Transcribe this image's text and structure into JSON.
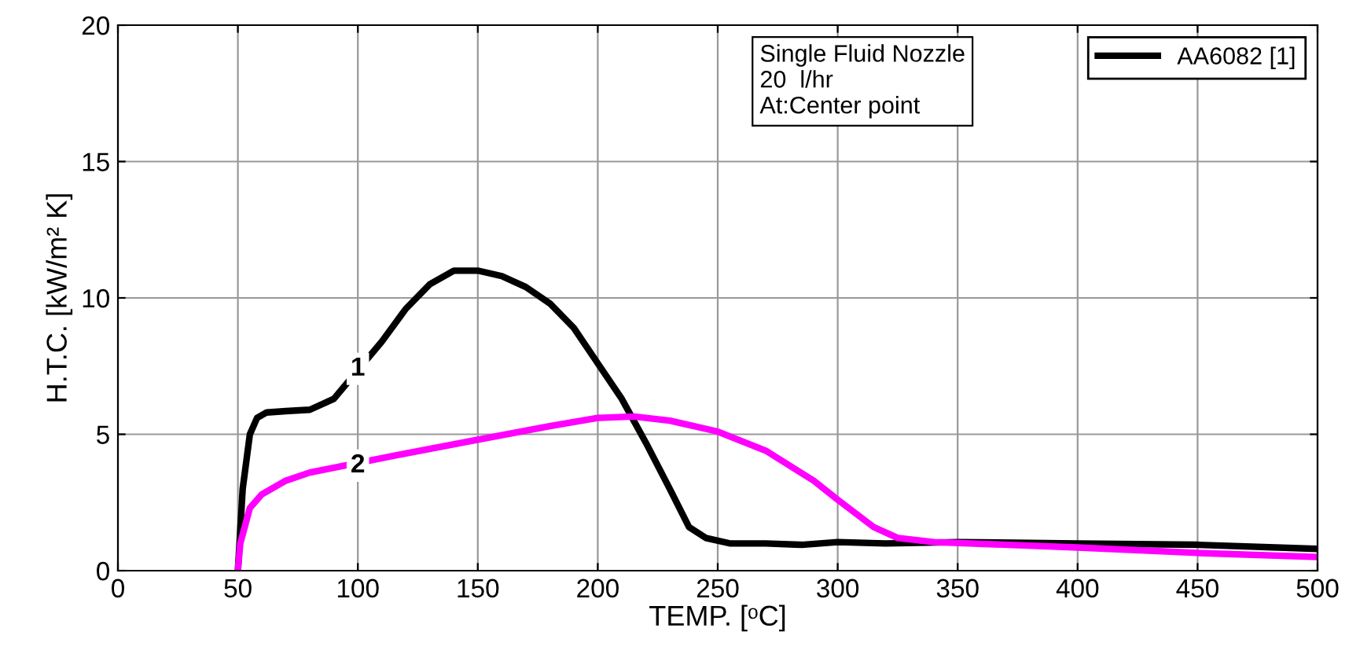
{
  "chart_data": {
    "type": "line",
    "xlabel": "TEMP. [ᵒC]",
    "ylabel": "H.T.C. [kW/m² K]",
    "xlim": [
      0,
      500
    ],
    "xticks": [
      0,
      50,
      100,
      150,
      200,
      250,
      300,
      350,
      400,
      450,
      500
    ],
    "ylim": [
      0,
      20
    ],
    "yticks": [
      0,
      5,
      10,
      15,
      20
    ],
    "grid": true,
    "legend": "top right",
    "marker": "none",
    "line_style": "solid",
    "annotations": [
      "Single Fluid Nozzle\n20  l/hr\nAt:Center point",
      {
        "text": "1",
        "x": 100,
        "y": 7.4
      },
      {
        "text": "2",
        "x": 100,
        "y": 3.85
      }
    ],
    "series": [
      {
        "name": "AA6082 [1]",
        "color": "#000000",
        "x": [
          50,
          52,
          55,
          58,
          62,
          70,
          80,
          90,
          110,
          120,
          130,
          140,
          150,
          160,
          170,
          180,
          190,
          200,
          210,
          220,
          230,
          238,
          245,
          255,
          270,
          285,
          300,
          320,
          350,
          400,
          450,
          500
        ],
        "values": [
          0,
          3,
          5,
          5.6,
          5.8,
          5.85,
          5.9,
          6.3,
          8.4,
          9.6,
          10.5,
          11.0,
          11.0,
          10.8,
          10.4,
          9.8,
          8.9,
          7.6,
          6.3,
          4.7,
          3.0,
          1.6,
          1.2,
          1.0,
          1.0,
          0.95,
          1.05,
          1.0,
          1.05,
          1.0,
          0.95,
          0.8
        ]
      },
      {
        "color": "#ff00ff",
        "x": [
          50,
          51,
          55,
          60,
          70,
          80,
          120,
          150,
          180,
          200,
          215,
          230,
          250,
          270,
          290,
          300,
          315,
          325,
          340,
          400,
          450,
          500
        ],
        "values": [
          0,
          1,
          2.3,
          2.8,
          3.3,
          3.6,
          4.3,
          4.8,
          5.3,
          5.6,
          5.65,
          5.5,
          5.1,
          4.4,
          3.3,
          2.6,
          1.6,
          1.2,
          1.05,
          0.85,
          0.65,
          0.5
        ]
      }
    ]
  }
}
